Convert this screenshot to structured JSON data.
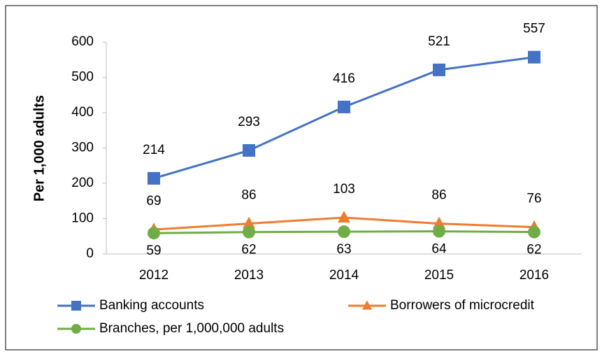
{
  "chart_data": {
    "type": "line",
    "y_label": "Per 1,000 adults",
    "categories": [
      "2012",
      "2013",
      "2014",
      "2015",
      "2016"
    ],
    "series": [
      {
        "name": "Banking accounts",
        "color": "#4472c4",
        "marker": "square",
        "label_pos": "above",
        "values": [
          214,
          293,
          416,
          521,
          557
        ]
      },
      {
        "name": "Borrowers of microcredit",
        "color": "#ed7d31",
        "marker": "triangle",
        "label_pos": "above",
        "values": [
          69,
          86,
          103,
          86,
          76
        ]
      },
      {
        "name": "Branches, per 1,000,000 adults",
        "color": "#70ad47",
        "marker": "circle",
        "label_pos": "below",
        "values": [
          59,
          62,
          63,
          64,
          62
        ]
      }
    ],
    "ylim": [
      0,
      600
    ],
    "yticks": [
      0,
      100,
      200,
      300,
      400,
      500,
      600
    ],
    "grid": false
  }
}
